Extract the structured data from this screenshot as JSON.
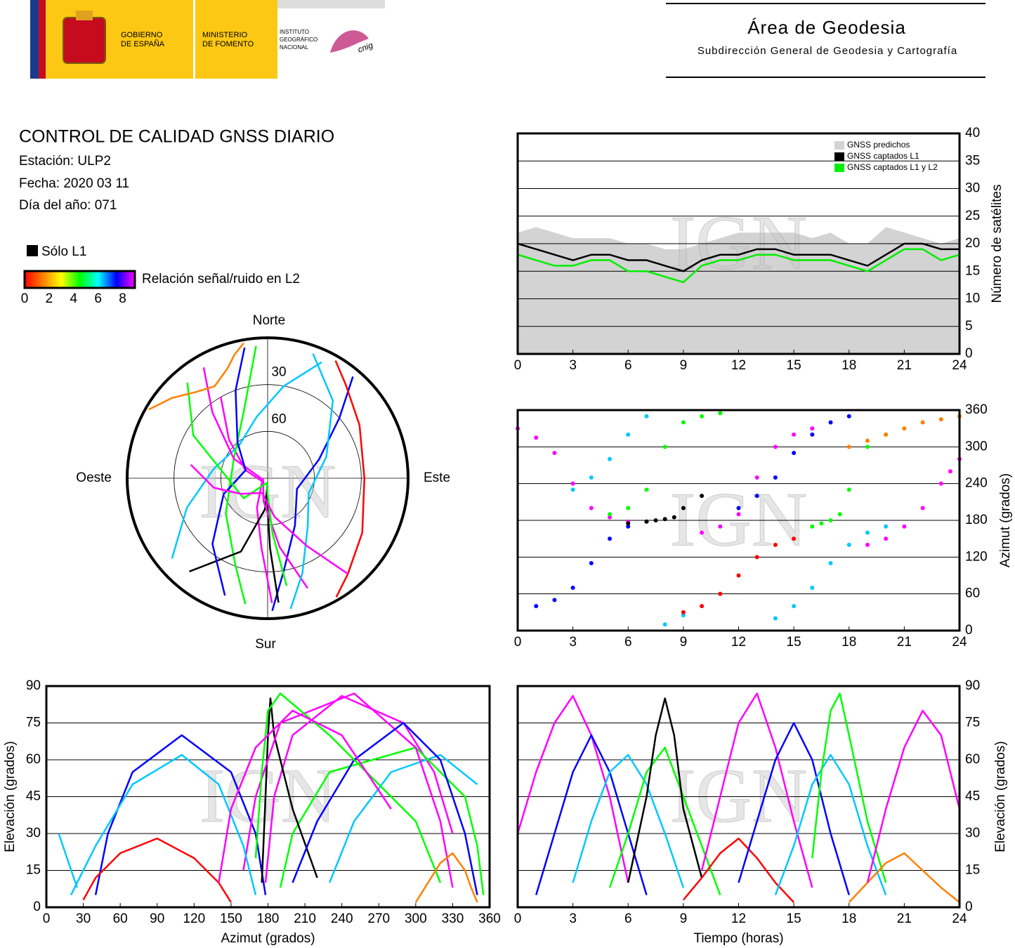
{
  "header": {
    "government": [
      "GOBIERNO",
      "DE ESPAÑA"
    ],
    "ministry": [
      "MINISTERIO",
      "DE FOMENTO"
    ],
    "institute": [
      "INSTITUTO",
      "GEOGRÁFICO",
      "NACIONAL"
    ],
    "cnig": "cnig",
    "area": "Área de Geodesia",
    "subdirectorate": "Subdirección General de Geodesia y Cartografía"
  },
  "report": {
    "title": "CONTROL DE CALIDAD GNSS DIARIO",
    "station": "Estación: ULP2",
    "date": "Fecha: 2020 03 11",
    "day_of_year": "Día del año: 071",
    "l1_only": "Sólo L1",
    "colorbar_label": "Relación señal/ruido en L2",
    "clim": [
      0,
      9
    ],
    "cticks": [
      0,
      2,
      4,
      6,
      8
    ],
    "colors": [
      "#ff0000",
      "#ff8000",
      "#ffff00",
      "#00ff00",
      "#00ffff",
      "#0000ff",
      "#ff00ff"
    ]
  },
  "watermark": "IGN",
  "chart_data": [
    {
      "type": "line",
      "x": [
        0,
        1,
        2,
        3,
        4,
        5,
        6,
        7,
        8,
        9,
        10,
        11,
        12,
        13,
        14,
        15,
        16,
        17,
        18,
        19,
        20,
        21,
        22,
        23,
        24
      ],
      "series": [
        {
          "name": "GNSS predichos",
          "color": "#d3d3d3",
          "style": "area",
          "values": [
            22,
            23,
            22,
            21,
            21,
            21,
            20,
            20,
            19,
            19,
            20,
            21,
            22,
            22,
            22,
            22,
            21,
            22,
            20,
            20,
            23,
            22,
            21,
            20,
            21
          ]
        },
        {
          "name": "GNSS captados L1",
          "color": "#000000",
          "values": [
            20,
            19,
            18,
            17,
            18,
            18,
            17,
            17,
            16,
            15,
            17,
            18,
            18,
            19,
            19,
            18,
            18,
            18,
            17,
            16,
            18,
            20,
            20,
            19,
            19
          ]
        },
        {
          "name": "GNSS captados L1 y L2",
          "color": "#00ee00",
          "values": [
            18,
            17,
            16,
            16,
            17,
            17,
            15,
            15,
            14,
            13,
            16,
            17,
            17,
            18,
            18,
            17,
            17,
            17,
            16,
            15,
            17,
            19,
            19,
            17,
            18
          ]
        }
      ],
      "xlim": [
        0,
        24
      ],
      "xticks": [
        0,
        3,
        6,
        9,
        12,
        15,
        18,
        21,
        24
      ],
      "ylim": [
        0,
        40
      ],
      "yticks": [
        0,
        5,
        10,
        15,
        20,
        25,
        30,
        35,
        40
      ],
      "ylabel": "Número de satélites",
      "grid": true
    },
    {
      "type": "polar",
      "directions": {
        "north": "Norte",
        "south": "Sur",
        "east": "Este",
        "west": "Oeste"
      },
      "rlim": [
        90,
        0
      ],
      "rticks": [
        30,
        60
      ],
      "series": [
        {
          "color": "#ff00ff",
          "hours": [
            0,
            1,
            2,
            3,
            4,
            5,
            6
          ],
          "azimuth": [
            330,
            315,
            290,
            240,
            200,
            185,
            178
          ],
          "elevation": [
            30,
            55,
            75,
            86,
            70,
            45,
            10
          ]
        },
        {
          "color": "#0000ff",
          "hours": [
            1,
            2,
            3,
            4,
            5,
            6,
            7
          ],
          "azimuth": [
            40,
            50,
            70,
            110,
            150,
            170,
            178
          ],
          "elevation": [
            5,
            30,
            55,
            70,
            55,
            30,
            5
          ]
        },
        {
          "color": "#00c8ff",
          "hours": [
            3,
            4,
            5,
            6,
            7,
            8,
            9
          ],
          "azimuth": [
            230,
            250,
            280,
            320,
            350,
            10,
            25
          ],
          "elevation": [
            10,
            35,
            55,
            62,
            50,
            30,
            8
          ]
        },
        {
          "color": "#00ff00",
          "hours": [
            5,
            6,
            7,
            8,
            9,
            10,
            11
          ],
          "azimuth": [
            190,
            200,
            230,
            300,
            340,
            350,
            355
          ],
          "elevation": [
            8,
            30,
            55,
            65,
            45,
            25,
            5
          ]
        },
        {
          "color": "#000000",
          "hours": [
            6,
            7,
            7.5,
            8,
            8.5,
            9,
            10
          ],
          "azimuth": [
            175,
            178,
            180,
            182,
            185,
            200,
            220
          ],
          "elevation": [
            10,
            45,
            70,
            85,
            70,
            40,
            12
          ]
        },
        {
          "color": "#ff0000",
          "hours": [
            9,
            10,
            11,
            12,
            13,
            14,
            15
          ],
          "azimuth": [
            30,
            40,
            60,
            90,
            120,
            140,
            150
          ],
          "elevation": [
            3,
            12,
            22,
            28,
            20,
            10,
            2
          ]
        },
        {
          "color": "#ff00ff",
          "hours": [
            10,
            11,
            12,
            13,
            14,
            15,
            16
          ],
          "azimuth": [
            160,
            170,
            190,
            250,
            300,
            320,
            330
          ],
          "elevation": [
            15,
            45,
            75,
            87,
            65,
            35,
            8
          ]
        },
        {
          "color": "#0000ff",
          "hours": [
            12,
            13,
            14,
            15,
            16,
            17,
            18
          ],
          "azimuth": [
            200,
            220,
            250,
            290,
            320,
            340,
            350
          ],
          "elevation": [
            10,
            35,
            60,
            75,
            60,
            30,
            5
          ]
        },
        {
          "color": "#00c8ff",
          "hours": [
            14,
            15,
            16,
            17,
            18,
            19,
            20
          ],
          "azimuth": [
            20,
            40,
            70,
            110,
            140,
            160,
            170
          ],
          "elevation": [
            5,
            25,
            50,
            62,
            50,
            25,
            5
          ]
        },
        {
          "color": "#00ff00",
          "hours": [
            16,
            16.5,
            17,
            17.5,
            18,
            19,
            20
          ],
          "azimuth": [
            170,
            175,
            180,
            190,
            230,
            300,
            320
          ],
          "elevation": [
            20,
            55,
            80,
            87,
            70,
            35,
            10
          ]
        },
        {
          "color": "#ff8000",
          "hours": [
            18,
            19,
            20,
            21,
            22,
            23,
            24
          ],
          "azimuth": [
            300,
            310,
            320,
            330,
            340,
            345,
            350
          ],
          "elevation": [
            2,
            10,
            18,
            22,
            15,
            8,
            2
          ]
        },
        {
          "color": "#ff00ff",
          "hours": [
            19,
            20,
            21,
            22,
            23,
            23.5,
            24
          ],
          "azimuth": [
            140,
            150,
            170,
            200,
            240,
            260,
            280
          ],
          "elevation": [
            10,
            40,
            65,
            80,
            70,
            55,
            40
          ]
        }
      ]
    },
    {
      "type": "scatter",
      "xlim": [
        0,
        24
      ],
      "xticks": [
        0,
        3,
        6,
        9,
        12,
        15,
        18,
        21,
        24
      ],
      "ylim": [
        0,
        360
      ],
      "yticks": [
        0,
        60,
        120,
        180,
        240,
        300,
        360
      ],
      "ylabel": "Azimut (grados)",
      "grid": true
    },
    {
      "type": "line",
      "xlim": [
        0,
        360
      ],
      "xticks": [
        0,
        30,
        60,
        90,
        120,
        150,
        180,
        210,
        240,
        270,
        300,
        330,
        360
      ],
      "ylim": [
        0,
        90
      ],
      "yticks": [
        0,
        15,
        30,
        45,
        60,
        75,
        90
      ],
      "xlabel": "Azimut (grados)",
      "ylabel": "Elevación (grados)",
      "grid": true
    },
    {
      "type": "line",
      "xlim": [
        0,
        24
      ],
      "xticks": [
        0,
        3,
        6,
        9,
        12,
        15,
        18,
        21,
        24
      ],
      "ylim": [
        0,
        90
      ],
      "yticks": [
        0,
        15,
        30,
        45,
        60,
        75,
        90
      ],
      "xlabel": "Tiempo (horas)",
      "ylabel": "Elevación (grados)",
      "grid": true
    }
  ]
}
